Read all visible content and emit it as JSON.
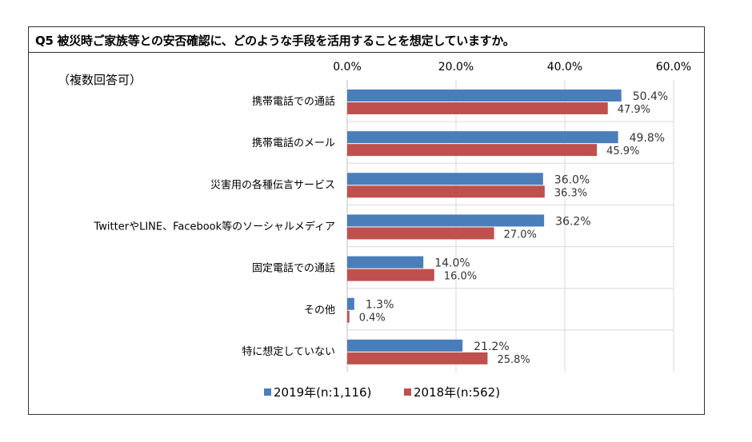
{
  "question": {
    "title": "Q5 被災時ご家族等との安否確認に、どのような手段を活用することを想定していますか。",
    "note": "（複数回答可）"
  },
  "chart_data": {
    "type": "bar",
    "orientation": "horizontal",
    "title": "Q5 被災時ご家族等との安否確認に、どのような手段を活用することを想定していますか。",
    "xlim": [
      0,
      60
    ],
    "xticks": [
      "0.0%",
      "20.0%",
      "40.0%",
      "60.0%"
    ],
    "xtick_values": [
      0,
      20,
      40,
      60
    ],
    "grid": "vertical",
    "legend_position": "bottom",
    "categories": [
      "携帯電話での通話",
      "携帯電話のメール",
      "災害用の各種伝言サービス",
      "TwitterやLINE、Facebook等のソーシャルメディア",
      "固定電話での通話",
      "その他",
      "特に想定していない"
    ],
    "series": [
      {
        "name": "2019年(n:1,116)",
        "color": "#4a7ebb",
        "values": [
          50.4,
          49.8,
          36.0,
          36.2,
          14.0,
          1.3,
          21.2
        ],
        "labels": [
          "50.4%",
          "49.8%",
          "36.0%",
          "36.2%",
          "14.0%",
          "1.3%",
          "21.2%"
        ]
      },
      {
        "name": "2018年(n:562)",
        "color": "#c0504d",
        "values": [
          47.9,
          45.9,
          36.3,
          27.0,
          16.0,
          0.4,
          25.8
        ],
        "labels": [
          "47.9%",
          "45.9%",
          "36.3%",
          "27.0%",
          "16.0%",
          "0.4%",
          "25.8%"
        ]
      }
    ]
  }
}
